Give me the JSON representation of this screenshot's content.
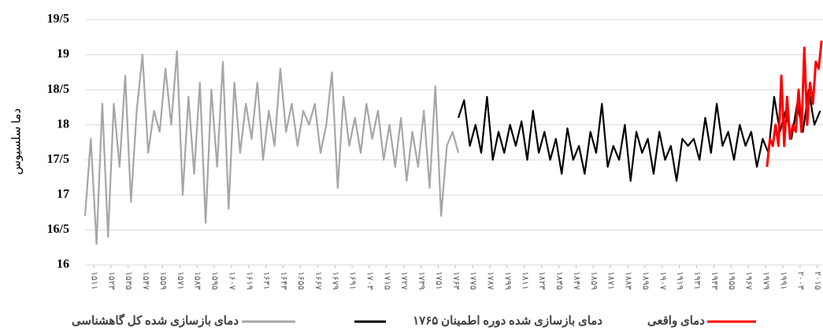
{
  "chart_data": {
    "type": "line",
    "y_label": "دما سلسیوس",
    "xlim": [
      1505,
      2019
    ],
    "ylim": [
      16,
      19.5
    ],
    "yticks": [
      16,
      {
        "value": 16.5,
        "label": "16/5"
      },
      17,
      {
        "value": 17.5,
        "label": "17/5"
      },
      18,
      {
        "value": 18.5,
        "label": "18/5"
      },
      19,
      {
        "value": 19.5,
        "label": "19/5"
      }
    ],
    "xticks": [
      {
        "value": 1511,
        "label": "۱۵۱۱"
      },
      {
        "value": 1523,
        "label": "۱۵۲۳"
      },
      {
        "value": 1535,
        "label": "۱۵۳۵"
      },
      {
        "value": 1547,
        "label": "۱۵۴۷"
      },
      {
        "value": 1559,
        "label": "۱۵۵۹"
      },
      {
        "value": 1571,
        "label": "۱۵۷۱"
      },
      {
        "value": 1583,
        "label": "۱۵۸۳"
      },
      {
        "value": 1595,
        "label": "۱۵۹۵"
      },
      {
        "value": 1607,
        "label": "۱۶۰۷"
      },
      {
        "value": 1619,
        "label": "۱۶۱۹"
      },
      {
        "value": 1631,
        "label": "۱۶۳۱"
      },
      {
        "value": 1643,
        "label": "۱۶۴۳"
      },
      {
        "value": 1655,
        "label": "۱۶۵۵"
      },
      {
        "value": 1667,
        "label": "۱۶۶۷"
      },
      {
        "value": 1679,
        "label": "۱۶۷۹"
      },
      {
        "value": 1691,
        "label": "۱۶۹۱"
      },
      {
        "value": 1703,
        "label": "۱۷۰۳"
      },
      {
        "value": 1715,
        "label": "۱۷۱۵"
      },
      {
        "value": 1727,
        "label": "۱۷۲۷"
      },
      {
        "value": 1739,
        "label": "۱۷۳۹"
      },
      {
        "value": 1751,
        "label": "۱۷۵۱"
      },
      {
        "value": 1763,
        "label": "۱۷۶۳"
      },
      {
        "value": 1775,
        "label": "۱۷۷۵"
      },
      {
        "value": 1787,
        "label": "۱۷۸۷"
      },
      {
        "value": 1799,
        "label": "۱۷۹۹"
      },
      {
        "value": 1811,
        "label": "۱۸۱۱"
      },
      {
        "value": 1823,
        "label": "۱۸۲۳"
      },
      {
        "value": 1835,
        "label": "۱۸۳۵"
      },
      {
        "value": 1847,
        "label": "۱۸۴۷"
      },
      {
        "value": 1859,
        "label": "۱۸۵۹"
      },
      {
        "value": 1871,
        "label": "۱۸۷۱"
      },
      {
        "value": 1883,
        "label": "۱۸۸۳"
      },
      {
        "value": 1895,
        "label": "۱۸۹۵"
      },
      {
        "value": 1907,
        "label": "۱۹۰۷"
      },
      {
        "value": 1919,
        "label": "۱۹۱۹"
      },
      {
        "value": 1931,
        "label": "۱۹۳۱"
      },
      {
        "value": 1943,
        "label": "۱۹۴۳"
      },
      {
        "value": 1955,
        "label": "۱۹۵۵"
      },
      {
        "value": 1967,
        "label": "۱۹۶۷"
      },
      {
        "value": 1979,
        "label": "۱۹۷۹"
      },
      {
        "value": 1991,
        "label": "۱۹۹۱"
      },
      {
        "value": 2003,
        "label": "۲۰۰۳"
      },
      {
        "value": 2015,
        "label": "۲۰۱۵"
      }
    ],
    "grid": true,
    "legend": "bottom",
    "series": [
      {
        "name": "دمای بازسازی شده کل گاهشناسی",
        "color": "#a6a6a6",
        "x": [
          1505,
          1509,
          1513,
          1517,
          1521,
          1525,
          1529,
          1533,
          1537,
          1541,
          1545,
          1549,
          1553,
          1557,
          1561,
          1565,
          1569,
          1573,
          1577,
          1581,
          1585,
          1589,
          1593,
          1597,
          1601,
          1605,
          1609,
          1613,
          1617,
          1621,
          1625,
          1629,
          1633,
          1637,
          1641,
          1645,
          1649,
          1653,
          1657,
          1661,
          1665,
          1669,
          1673,
          1677,
          1681,
          1685,
          1689,
          1693,
          1697,
          1701,
          1705,
          1709,
          1713,
          1717,
          1721,
          1725,
          1729,
          1733,
          1737,
          1741,
          1745,
          1749,
          1753,
          1757,
          1761,
          1765
        ],
        "values": [
          16.7,
          17.8,
          16.3,
          18.3,
          16.4,
          18.3,
          17.4,
          18.7,
          16.9,
          18.2,
          19.0,
          17.6,
          18.2,
          17.9,
          18.8,
          18.0,
          19.05,
          17.0,
          18.4,
          17.3,
          18.6,
          16.6,
          18.5,
          17.4,
          18.9,
          16.8,
          18.6,
          17.6,
          18.3,
          17.8,
          18.6,
          17.5,
          18.2,
          17.7,
          18.8,
          17.9,
          18.3,
          17.7,
          18.2,
          18.0,
          18.3,
          17.6,
          18.0,
          18.75,
          17.1,
          18.4,
          17.7,
          18.1,
          17.6,
          18.3,
          17.8,
          18.2,
          17.5,
          18.0,
          17.4,
          18.1,
          17.2,
          17.9,
          17.4,
          18.2,
          17.1,
          18.55,
          16.7,
          17.7,
          17.9,
          17.6
        ]
      },
      {
        "name": "دمای  بازسازی شده دوره اطمینان ۱۷۶۵",
        "color": "#000000",
        "x": [
          1765,
          1769,
          1773,
          1777,
          1781,
          1785,
          1789,
          1793,
          1797,
          1801,
          1805,
          1809,
          1813,
          1817,
          1821,
          1825,
          1829,
          1833,
          1837,
          1841,
          1845,
          1849,
          1853,
          1857,
          1861,
          1865,
          1869,
          1873,
          1877,
          1881,
          1885,
          1889,
          1893,
          1897,
          1901,
          1905,
          1909,
          1913,
          1917,
          1921,
          1925,
          1929,
          1933,
          1937,
          1941,
          1945,
          1949,
          1953,
          1957,
          1961,
          1965,
          1969,
          1973,
          1977,
          1981,
          1985,
          1989,
          1993,
          1997,
          2001,
          2005,
          2009,
          2013,
          2017
        ],
        "values": [
          18.1,
          18.35,
          17.7,
          18.0,
          17.6,
          18.4,
          17.5,
          17.9,
          17.6,
          18.0,
          17.7,
          18.05,
          17.5,
          18.2,
          17.6,
          17.9,
          17.5,
          17.8,
          17.3,
          17.95,
          17.5,
          17.7,
          17.3,
          17.9,
          17.6,
          18.3,
          17.4,
          17.7,
          17.5,
          18.0,
          17.2,
          17.9,
          17.6,
          17.8,
          17.3,
          17.9,
          17.5,
          17.7,
          17.2,
          17.8,
          17.7,
          17.8,
          17.5,
          18.1,
          17.6,
          18.3,
          17.7,
          17.9,
          17.5,
          18.0,
          17.7,
          17.9,
          17.4,
          17.8,
          17.6,
          18.4,
          17.9,
          18.2,
          17.8,
          18.3,
          17.9,
          18.5,
          18.0,
          18.2
        ]
      },
      {
        "name": "دمای واقعی",
        "color": "#ff0000",
        "x": [
          1980,
          1982,
          1984,
          1986,
          1988,
          1990,
          1992,
          1994,
          1996,
          1998,
          2000,
          2002,
          2004,
          2006,
          2008,
          2010,
          2012,
          2014,
          2016,
          2018
        ],
        "values": [
          17.4,
          17.8,
          17.7,
          18.0,
          17.7,
          18.7,
          17.7,
          18.4,
          17.8,
          18.0,
          17.9,
          18.5,
          17.9,
          19.1,
          18.0,
          18.6,
          18.3,
          18.9,
          18.8,
          19.2
        ]
      }
    ]
  }
}
